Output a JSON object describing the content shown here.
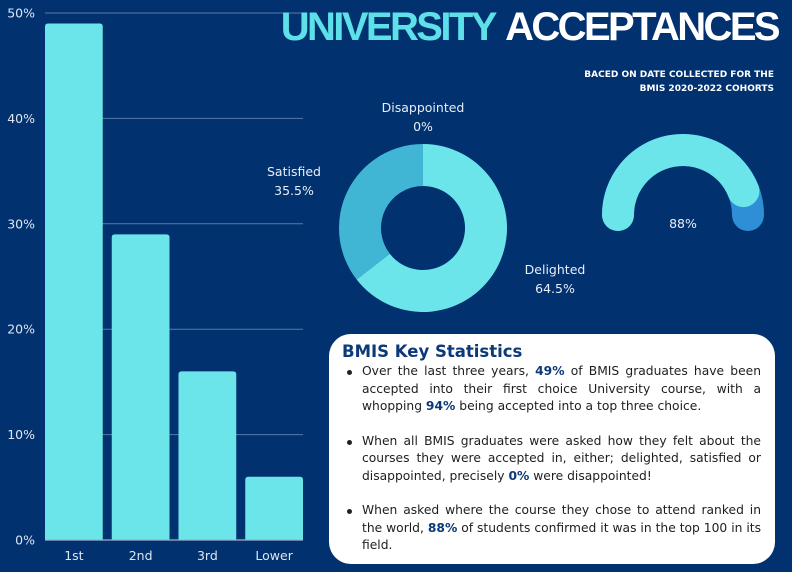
{
  "header": {
    "title_part1": "UNIVERSITY",
    "title_part2": "ACCEPTANCES",
    "subtitle_line1": "BACED ON DATE COLLECTED FOR THE",
    "subtitle_line2": "BMIS 2020-2022 COHORTS"
  },
  "colors": {
    "background": "#01316f",
    "bar": "#6be5ea",
    "accent_title": "#5ee0e8",
    "donut_delighted": "#6be5ea",
    "donut_satisfied": "#41b6d4",
    "gauge_fill": "#6be5ea",
    "gauge_rest": "#2e8fd6",
    "stat_highlight": "#0c3a78"
  },
  "chart_data": [
    {
      "type": "bar",
      "title": "",
      "categories": [
        "1st",
        "2nd",
        "3rd",
        "Lower"
      ],
      "values": [
        49,
        29,
        16,
        6
      ],
      "ylim": [
        0,
        50
      ],
      "yticks": [
        "0%",
        "10%",
        "20%",
        "30%",
        "40%",
        "50%"
      ],
      "ytick_values": [
        0,
        10,
        20,
        30,
        40,
        50
      ],
      "xlabel": "",
      "ylabel": "",
      "grid": true
    },
    {
      "type": "pie",
      "variant": "donut",
      "slices": [
        {
          "label": "Delighted",
          "value": 64.5,
          "display": "64.5%"
        },
        {
          "label": "Satisfied",
          "value": 35.5,
          "display": "35.5%"
        },
        {
          "label": "Disappointed",
          "value": 0,
          "display": "0%"
        }
      ]
    },
    {
      "type": "gauge",
      "value": 88,
      "max": 100,
      "display": "88%"
    }
  ],
  "stats": {
    "heading": "BMIS Key Statistics",
    "items": [
      {
        "pre": "Over the last three years, ",
        "hl1": "49%",
        "mid": " of BMIS graduates have been accepted into their first choice University course, with a whopping ",
        "hl2": "94%",
        "post": " being accepted into a top three choice."
      },
      {
        "pre": "When all BMIS graduates were asked how they felt about the courses they were accepted in, either; delighted, satisfied or disappointed, precisely ",
        "hl1": "0%",
        "post": " were disappointed!"
      },
      {
        "pre": "When asked where the course they chose to attend ranked in the world, ",
        "hl1": "88%",
        "post": " of students confirmed it was in the top 100 in its field."
      }
    ]
  }
}
